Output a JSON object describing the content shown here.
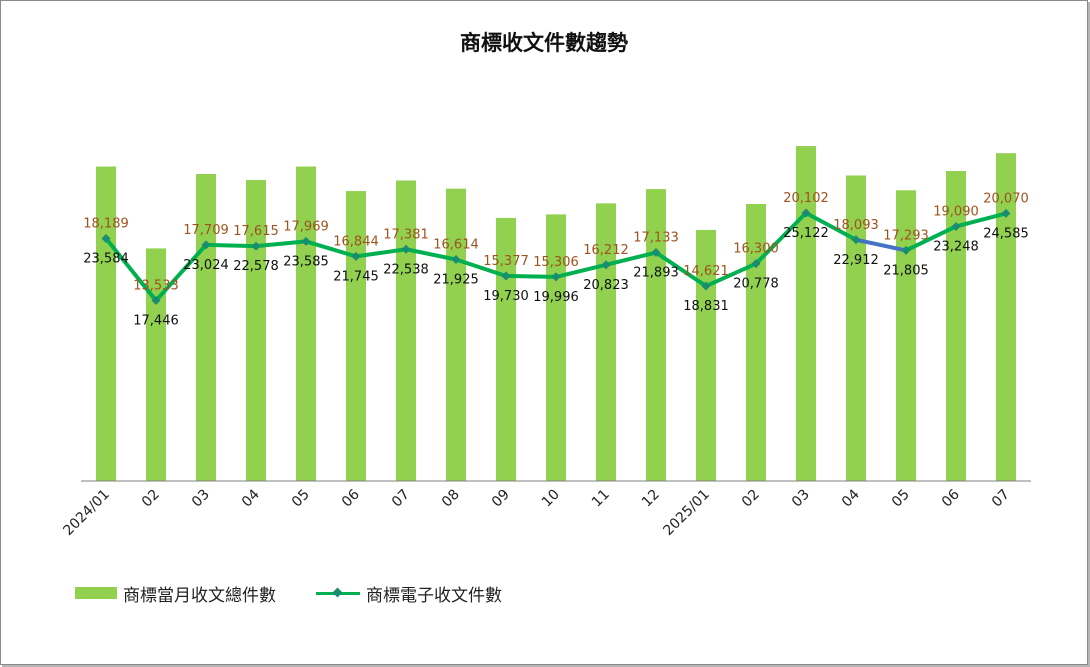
{
  "chart_data": {
    "type": "bar",
    "title": "商標收文件數趨勢",
    "categories": [
      "2024/01",
      "02",
      "03",
      "04",
      "05",
      "06",
      "07",
      "08",
      "09",
      "10",
      "11",
      "12",
      "2025/01",
      "02",
      "03",
      "04",
      "05",
      "06",
      "07"
    ],
    "ylim": [
      0,
      30000
    ],
    "grid": false,
    "legend_position": "bottom-left",
    "series": [
      {
        "name": "商標當月收文總件數",
        "type": "bar",
        "color": "#92d050",
        "values": [
          23584,
          17446,
          23024,
          22578,
          23585,
          21745,
          22538,
          21925,
          19730,
          19996,
          20823,
          21893,
          18831,
          20778,
          25122,
          22912,
          21805,
          23248,
          24585
        ],
        "labels": [
          "23,584",
          "17,446",
          "23,024",
          "22,578",
          "23,585",
          "21,745",
          "22,538",
          "21,925",
          "19,730",
          "19,996",
          "20,823",
          "21,893",
          "18,831",
          "20,778",
          "25,122",
          "22,912",
          "21,805",
          "23,248",
          "24,585"
        ]
      },
      {
        "name": "商標電子收文件數",
        "type": "line",
        "color": "#00b050",
        "highlight_color": "#4472c4",
        "values": [
          18189,
          13533,
          17709,
          17615,
          17969,
          16844,
          17381,
          16614,
          15377,
          15306,
          16212,
          17133,
          14621,
          16300,
          20102,
          18093,
          17293,
          19090,
          20070
        ],
        "labels": [
          "18,189",
          "13,533",
          "17,709",
          "17,615",
          "17,969",
          "16,844",
          "17,381",
          "16,614",
          "15,377",
          "15,306",
          "16,212",
          "17,133",
          "14,621",
          "16,300",
          "20,102",
          "18,093",
          "17,293",
          "19,090",
          "20,070"
        ]
      }
    ]
  },
  "colors": {
    "bar": "#92d050",
    "line": "#00b050",
    "marker": "#1a8c6f",
    "line_label": "#a0521d",
    "bar_label": "#111111",
    "axis": "#808080"
  }
}
